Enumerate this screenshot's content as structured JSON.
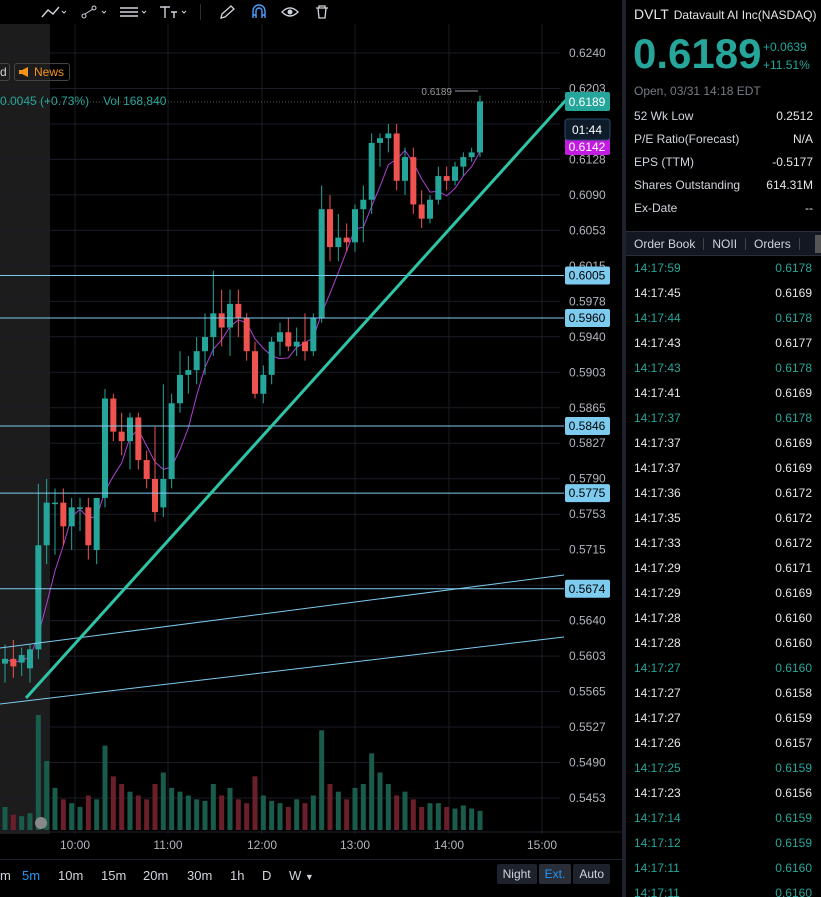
{
  "toolbar": {
    "icons": [
      "line-tool",
      "brush-tool",
      "fib-tool",
      "text-tool",
      "pen-tool",
      "magnet",
      "eye",
      "trash"
    ]
  },
  "chart": {
    "news_label": "News",
    "d_label": "d",
    "legend_change": "0.0045 (+0.73%)",
    "legend_vol": "Vol  168,840",
    "price_axis": [
      "0.6240",
      "0.6203",
      "0.6165",
      "0.6128",
      "0.6090",
      "0.6053",
      "0.6015",
      "0.5978",
      "0.5940",
      "0.5903",
      "0.5865",
      "0.5827",
      "0.5790",
      "0.5753",
      "0.5715",
      "0.5678",
      "0.5640",
      "0.5603",
      "0.5565",
      "0.5527",
      "0.5490",
      "0.5453"
    ],
    "time_axis": [
      "10:00",
      "11:00",
      "12:00",
      "13:00",
      "14:00",
      "15:00"
    ],
    "hline_labels": [
      "0.6005",
      "0.5960",
      "0.5846",
      "0.5775",
      "0.5674"
    ],
    "last_price_label": "0.6189",
    "countdown_label": "01:44",
    "ma_label": "0.6142",
    "hi_marker": "0.6189",
    "colors": {
      "up": "#26a69a",
      "down": "#ef5350",
      "accent_line": "#2ec4a6",
      "hline": "#7ecbf0"
    }
  },
  "timeframes": [
    "m",
    "5m",
    "10m",
    "15m",
    "20m",
    "30m",
    "1h",
    "D",
    "W"
  ],
  "timeframe_active": "5m",
  "session_buttons": [
    "Night",
    "Ext.",
    "Auto"
  ],
  "quote": {
    "symbol": "DVLT",
    "name": "Datavault AI Inc(NASDAQ)",
    "price": "0.6189",
    "change": "+0.0639",
    "change_pct": "+11.51%",
    "open_time": "Open, 03/31 14:18 EDT",
    "stats": [
      {
        "label": "52 Wk Low",
        "value": "0.2512"
      },
      {
        "label": "P/E Ratio(Forecast)",
        "value": "N/A"
      },
      {
        "label": "EPS (TTM)",
        "value": "-0.5177"
      },
      {
        "label": "Shares Outstanding",
        "value": "614.31M"
      },
      {
        "label": "Ex-Date",
        "value": "--"
      }
    ]
  },
  "panel_tabs": [
    "Order Book",
    "NOII",
    "Orders"
  ],
  "trades": [
    {
      "time": "14:17:59",
      "price": "0.6178",
      "dir": "up"
    },
    {
      "time": "14:17:45",
      "price": "0.6169",
      "dir": "dn"
    },
    {
      "time": "14:17:44",
      "price": "0.6178",
      "dir": "up"
    },
    {
      "time": "14:17:43",
      "price": "0.6177",
      "dir": "dn"
    },
    {
      "time": "14:17:43",
      "price": "0.6178",
      "dir": "up"
    },
    {
      "time": "14:17:41",
      "price": "0.6169",
      "dir": "dn"
    },
    {
      "time": "14:17:37",
      "price": "0.6178",
      "dir": "up"
    },
    {
      "time": "14:17:37",
      "price": "0.6169",
      "dir": "dn"
    },
    {
      "time": "14:17:37",
      "price": "0.6169",
      "dir": "dn"
    },
    {
      "time": "14:17:36",
      "price": "0.6172",
      "dir": "dn"
    },
    {
      "time": "14:17:35",
      "price": "0.6172",
      "dir": "dn"
    },
    {
      "time": "14:17:33",
      "price": "0.6172",
      "dir": "dn"
    },
    {
      "time": "14:17:29",
      "price": "0.6171",
      "dir": "dn"
    },
    {
      "time": "14:17:29",
      "price": "0.6169",
      "dir": "dn"
    },
    {
      "time": "14:17:28",
      "price": "0.6160",
      "dir": "dn"
    },
    {
      "time": "14:17:28",
      "price": "0.6160",
      "dir": "dn"
    },
    {
      "time": "14:17:27",
      "price": "0.6160",
      "dir": "up"
    },
    {
      "time": "14:17:27",
      "price": "0.6158",
      "dir": "dn"
    },
    {
      "time": "14:17:27",
      "price": "0.6159",
      "dir": "dn"
    },
    {
      "time": "14:17:26",
      "price": "0.6157",
      "dir": "dn"
    },
    {
      "time": "14:17:25",
      "price": "0.6159",
      "dir": "up"
    },
    {
      "time": "14:17:23",
      "price": "0.6156",
      "dir": "dn"
    },
    {
      "time": "14:17:14",
      "price": "0.6159",
      "dir": "up"
    },
    {
      "time": "14:17:12",
      "price": "0.6159",
      "dir": "up"
    },
    {
      "time": "14:17:11",
      "price": "0.6160",
      "dir": "up"
    },
    {
      "time": "14:17:11",
      "price": "0.6160",
      "dir": "up"
    }
  ],
  "chart_data": {
    "type": "candlestick",
    "interval": "5m",
    "candles": [
      {
        "o": 0.5595,
        "h": 0.5615,
        "l": 0.5575,
        "c": 0.56
      },
      {
        "o": 0.56,
        "h": 0.562,
        "l": 0.558,
        "c": 0.5592
      },
      {
        "o": 0.5596,
        "h": 0.5612,
        "l": 0.5582,
        "c": 0.5604
      },
      {
        "o": 0.559,
        "h": 0.5615,
        "l": 0.5575,
        "c": 0.561
      },
      {
        "o": 0.561,
        "h": 0.5785,
        "l": 0.56,
        "c": 0.572
      },
      {
        "o": 0.572,
        "h": 0.579,
        "l": 0.57,
        "c": 0.5765
      },
      {
        "o": 0.5765,
        "h": 0.578,
        "l": 0.571,
        "c": 0.5765
      },
      {
        "o": 0.5765,
        "h": 0.578,
        "l": 0.572,
        "c": 0.574
      },
      {
        "o": 0.574,
        "h": 0.577,
        "l": 0.5715,
        "c": 0.576
      },
      {
        "o": 0.576,
        "h": 0.577,
        "l": 0.5735,
        "c": 0.576
      },
      {
        "o": 0.576,
        "h": 0.577,
        "l": 0.5705,
        "c": 0.572
      },
      {
        "o": 0.5715,
        "h": 0.577,
        "l": 0.57,
        "c": 0.577
      },
      {
        "o": 0.577,
        "h": 0.5885,
        "l": 0.576,
        "c": 0.5875
      },
      {
        "o": 0.5875,
        "h": 0.588,
        "l": 0.583,
        "c": 0.584
      },
      {
        "o": 0.584,
        "h": 0.586,
        "l": 0.5815,
        "c": 0.583
      },
      {
        "o": 0.583,
        "h": 0.586,
        "l": 0.58,
        "c": 0.5855
      },
      {
        "o": 0.5855,
        "h": 0.586,
        "l": 0.58,
        "c": 0.581
      },
      {
        "o": 0.581,
        "h": 0.582,
        "l": 0.578,
        "c": 0.579
      },
      {
        "o": 0.579,
        "h": 0.5845,
        "l": 0.5745,
        "c": 0.5755
      },
      {
        "o": 0.576,
        "h": 0.589,
        "l": 0.575,
        "c": 0.579
      },
      {
        "o": 0.579,
        "h": 0.588,
        "l": 0.578,
        "c": 0.587
      },
      {
        "o": 0.587,
        "h": 0.5925,
        "l": 0.586,
        "c": 0.59
      },
      {
        "o": 0.59,
        "h": 0.592,
        "l": 0.588,
        "c": 0.5905
      },
      {
        "o": 0.5905,
        "h": 0.594,
        "l": 0.589,
        "c": 0.5925
      },
      {
        "o": 0.5925,
        "h": 0.5965,
        "l": 0.59,
        "c": 0.594
      },
      {
        "o": 0.594,
        "h": 0.601,
        "l": 0.592,
        "c": 0.5965
      },
      {
        "o": 0.5965,
        "h": 0.599,
        "l": 0.593,
        "c": 0.595
      },
      {
        "o": 0.595,
        "h": 0.599,
        "l": 0.592,
        "c": 0.5975
      },
      {
        "o": 0.5975,
        "h": 0.599,
        "l": 0.594,
        "c": 0.596
      },
      {
        "o": 0.596,
        "h": 0.5965,
        "l": 0.5915,
        "c": 0.5925
      },
      {
        "o": 0.5925,
        "h": 0.5935,
        "l": 0.5875,
        "c": 0.588
      },
      {
        "o": 0.588,
        "h": 0.591,
        "l": 0.587,
        "c": 0.59
      },
      {
        "o": 0.59,
        "h": 0.594,
        "l": 0.589,
        "c": 0.5935
      },
      {
        "o": 0.5935,
        "h": 0.5955,
        "l": 0.592,
        "c": 0.5945
      },
      {
        "o": 0.5945,
        "h": 0.596,
        "l": 0.5925,
        "c": 0.593
      },
      {
        "o": 0.593,
        "h": 0.595,
        "l": 0.592,
        "c": 0.5935
      },
      {
        "o": 0.5935,
        "h": 0.5965,
        "l": 0.5915,
        "c": 0.5925
      },
      {
        "o": 0.5925,
        "h": 0.5965,
        "l": 0.592,
        "c": 0.596
      },
      {
        "o": 0.596,
        "h": 0.61,
        "l": 0.5955,
        "c": 0.6075
      },
      {
        "o": 0.6075,
        "h": 0.609,
        "l": 0.602,
        "c": 0.6035
      },
      {
        "o": 0.6035,
        "h": 0.607,
        "l": 0.602,
        "c": 0.6045
      },
      {
        "o": 0.6045,
        "h": 0.606,
        "l": 0.603,
        "c": 0.604
      },
      {
        "o": 0.604,
        "h": 0.608,
        "l": 0.603,
        "c": 0.6075
      },
      {
        "o": 0.6075,
        "h": 0.61,
        "l": 0.604,
        "c": 0.6085
      },
      {
        "o": 0.6085,
        "h": 0.6155,
        "l": 0.607,
        "c": 0.6145
      },
      {
        "o": 0.6145,
        "h": 0.6155,
        "l": 0.612,
        "c": 0.615
      },
      {
        "o": 0.615,
        "h": 0.6165,
        "l": 0.6135,
        "c": 0.6155
      },
      {
        "o": 0.6155,
        "h": 0.6165,
        "l": 0.6095,
        "c": 0.6105
      },
      {
        "o": 0.6105,
        "h": 0.614,
        "l": 0.609,
        "c": 0.613
      },
      {
        "o": 0.613,
        "h": 0.614,
        "l": 0.607,
        "c": 0.608
      },
      {
        "o": 0.608,
        "h": 0.6095,
        "l": 0.6055,
        "c": 0.6065
      },
      {
        "o": 0.6065,
        "h": 0.609,
        "l": 0.606,
        "c": 0.6085
      },
      {
        "o": 0.6085,
        "h": 0.612,
        "l": 0.608,
        "c": 0.611
      },
      {
        "o": 0.611,
        "h": 0.612,
        "l": 0.6095,
        "c": 0.6105
      },
      {
        "o": 0.6105,
        "h": 0.6125,
        "l": 0.61,
        "c": 0.612
      },
      {
        "o": 0.612,
        "h": 0.6135,
        "l": 0.611,
        "c": 0.613
      },
      {
        "o": 0.613,
        "h": 0.614,
        "l": 0.6125,
        "c": 0.6135
      },
      {
        "o": 0.6135,
        "h": 0.6195,
        "l": 0.613,
        "c": 0.6189
      }
    ],
    "volume": [
      30,
      20,
      18,
      22,
      150,
      90,
      55,
      40,
      35,
      30,
      45,
      40,
      110,
      70,
      60,
      50,
      45,
      40,
      60,
      75,
      55,
      50,
      45,
      40,
      38,
      60,
      45,
      55,
      40,
      35,
      70,
      45,
      38,
      35,
      30,
      40,
      35,
      45,
      130,
      60,
      50,
      40,
      55,
      60,
      100,
      75,
      60,
      45,
      50,
      40,
      30,
      35,
      35,
      30,
      28,
      32,
      28,
      25
    ],
    "horizontal_levels": [
      0.6005,
      0.596,
      0.5846,
      0.5775,
      0.5674
    ],
    "ylim": [
      0.543,
      0.626
    ]
  }
}
